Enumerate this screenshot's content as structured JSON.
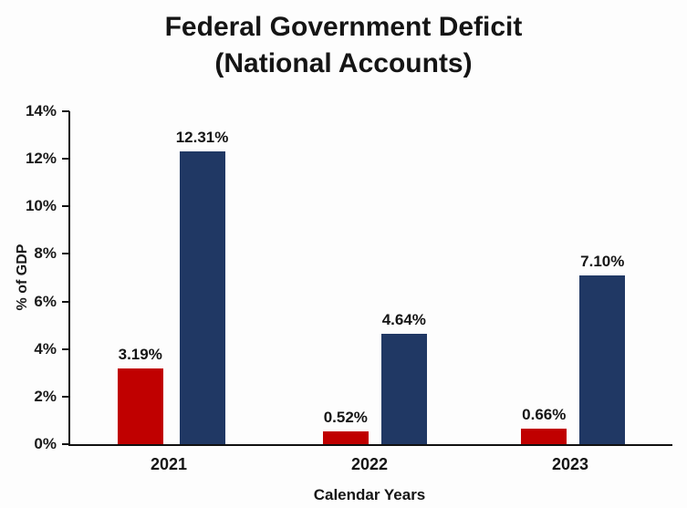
{
  "chart_data": {
    "type": "bar",
    "title": "Federal Government Deficit (National Accounts)",
    "title_lines": [
      "Federal Government Deficit",
      "(National Accounts)"
    ],
    "categories": [
      "2021",
      "2022",
      "2023"
    ],
    "series": [
      {
        "name": "red",
        "color": "#c00000",
        "values": [
          3.19,
          0.52,
          0.66
        ],
        "labels": [
          "3.19%",
          "0.52%",
          "0.66%"
        ]
      },
      {
        "name": "dark-blue",
        "color": "#203864",
        "values": [
          12.31,
          4.64,
          7.1
        ],
        "labels": [
          "12.31%",
          "4.64%",
          "7.10%"
        ]
      }
    ],
    "xlabel": "Calendar Years",
    "ylabel": "% of GDP",
    "ylim": [
      0,
      14
    ],
    "y_ticks": [
      0,
      2,
      4,
      6,
      8,
      10,
      12,
      14
    ],
    "y_tick_labels": [
      "0%",
      "2%",
      "4%",
      "6%",
      "8%",
      "10%",
      "12%",
      "14%"
    ],
    "grid": false,
    "legend": false,
    "axis_color": "#111111",
    "text_color": "#151515"
  }
}
